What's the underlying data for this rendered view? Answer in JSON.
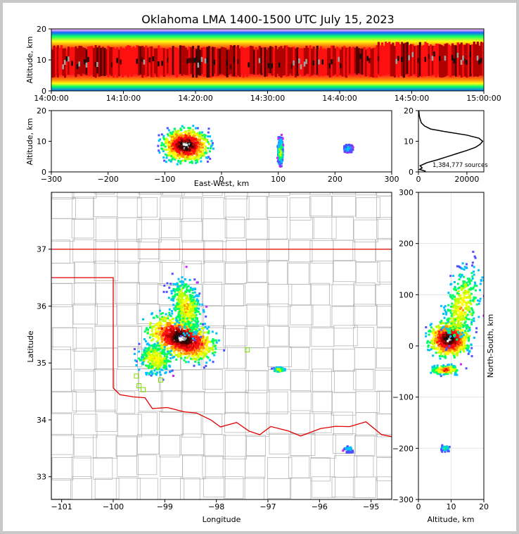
{
  "title": "Oklahoma LMA 1400-1500 UTC July 15, 2023",
  "colors": {
    "state_border": "#e00000",
    "county_lines": "#b8b8b8",
    "stations": "#7de000",
    "frame": "#c8c8c8"
  },
  "chart_data": [
    {
      "id": "time_height",
      "type": "heatmap",
      "title": "Oklahoma LMA 1400-1500 UTC July 15, 2023",
      "xlabel": "",
      "ylabel": "Altitude, km",
      "xticks": [
        "14:00:00",
        "14:10:00",
        "14:20:00",
        "14:30:00",
        "14:40:00",
        "14:50:00",
        "15:00:00"
      ],
      "xlim_minutes": [
        0,
        60
      ],
      "yticks": [
        "0",
        "10",
        "20"
      ],
      "ylim": [
        0,
        20
      ],
      "core_altitude_km": [
        5,
        14
      ],
      "peak_altitude_km": 9
    },
    {
      "id": "ew_height",
      "type": "heatmap",
      "xlabel": "East-West, km",
      "ylabel": "Altitude, km",
      "xticks": [
        "−300",
        "−200",
        "−100",
        "0",
        "100",
        "200",
        "300"
      ],
      "xlim": [
        -300,
        300
      ],
      "yticks": [
        "0",
        "10",
        "20"
      ],
      "ylim": [
        0,
        20
      ],
      "clusters": [
        {
          "center_km": -65,
          "width_km": 55,
          "alt_km": 9,
          "alt_spread": 4.5,
          "intensity": 1.0
        },
        {
          "center_km": 102,
          "width_km": 6,
          "alt_km": 7,
          "alt_spread": 3.5,
          "intensity": 0.45
        },
        {
          "center_km": 222,
          "width_km": 10,
          "alt_km": 8,
          "alt_spread": 1,
          "intensity": 0.25
        }
      ]
    },
    {
      "id": "altitude_histogram",
      "type": "line",
      "xlabel": "",
      "ylabel": "",
      "xticks": [
        "0",
        "20000"
      ],
      "xlim": [
        0,
        27000
      ],
      "yticks": [
        "0",
        "10",
        "20"
      ],
      "ylim": [
        0,
        20
      ],
      "annotation": "1,384,777 sources",
      "profile": [
        {
          "alt": 0.2,
          "count": 3000
        },
        {
          "alt": 0.8,
          "count": 500
        },
        {
          "alt": 1.3,
          "count": 1500
        },
        {
          "alt": 2,
          "count": 700
        },
        {
          "alt": 3,
          "count": 3500
        },
        {
          "alt": 4,
          "count": 8000
        },
        {
          "alt": 5,
          "count": 12000
        },
        {
          "alt": 6,
          "count": 16000
        },
        {
          "alt": 7,
          "count": 20000
        },
        {
          "alt": 8,
          "count": 23500
        },
        {
          "alt": 9,
          "count": 25500
        },
        {
          "alt": 10,
          "count": 26500
        },
        {
          "alt": 11,
          "count": 25000
        },
        {
          "alt": 12,
          "count": 20000
        },
        {
          "alt": 13,
          "count": 12000
        },
        {
          "alt": 14,
          "count": 5000
        },
        {
          "alt": 15,
          "count": 2500
        },
        {
          "alt": 16,
          "count": 1200
        },
        {
          "alt": 18,
          "count": 400
        },
        {
          "alt": 20,
          "count": 150
        }
      ]
    },
    {
      "id": "plan_view",
      "type": "scatter",
      "xlabel": "Longitude",
      "ylabel": "Latitude",
      "xticks": [
        "−101",
        "−100",
        "−99",
        "−98",
        "−97",
        "−96",
        "−95"
      ],
      "xlim": [
        -101.2,
        -94.6
      ],
      "yticks": [
        "33",
        "34",
        "35",
        "36",
        "37"
      ],
      "ylim": [
        32.6,
        38.0
      ],
      "stations": [
        {
          "lon": -97.4,
          "lat": 35.23
        },
        {
          "lon": -99.55,
          "lat": 34.77
        },
        {
          "lon": -99.5,
          "lat": 34.6
        },
        {
          "lon": -99.42,
          "lat": 34.53
        },
        {
          "lon": -99.08,
          "lat": 34.7
        }
      ]
    },
    {
      "id": "ns_height",
      "type": "heatmap",
      "xlabel": "Altitude, km",
      "ylabel": "North-South, km",
      "xticks": [
        "0",
        "10",
        "20"
      ],
      "xlim": [
        0,
        20
      ],
      "yticks": [
        "−300",
        "−200",
        "−100",
        "0",
        "100",
        "200",
        "300"
      ],
      "ylim": [
        -300,
        300
      ]
    }
  ]
}
